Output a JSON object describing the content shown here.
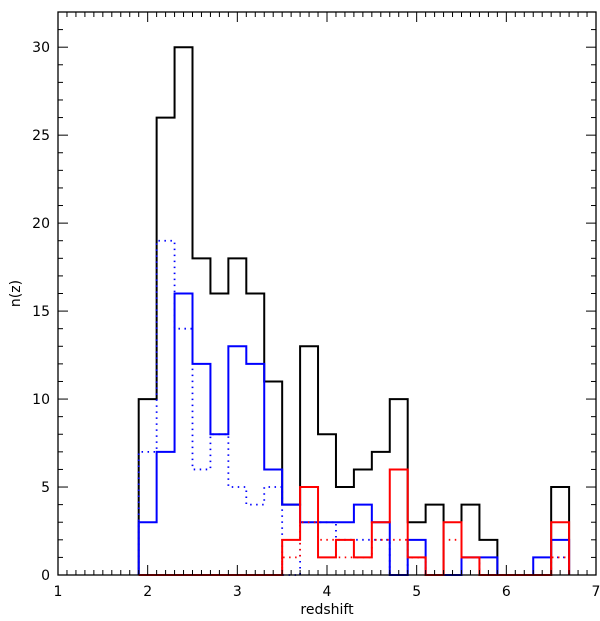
{
  "chart_data": {
    "type": "histogram-step",
    "title": "",
    "xlabel": "redshift",
    "ylabel": "n(z)",
    "xlim": [
      1,
      7
    ],
    "ylim": [
      0,
      32
    ],
    "x_ticks": [
      1,
      2,
      3,
      4,
      5,
      6,
      7
    ],
    "y_ticks": [
      0,
      5,
      10,
      15,
      20,
      25,
      30
    ],
    "x_minor_step": 0.1,
    "y_minor_step": 1,
    "grid": false,
    "legend": "none",
    "bins": {
      "start": 1.9,
      "width": 0.2,
      "count": 24
    },
    "series": [
      {
        "color": "#000000",
        "style": "solid",
        "values": [
          10,
          26,
          30,
          18,
          16,
          18,
          16,
          11,
          4,
          13,
          8,
          5,
          6,
          7,
          10,
          3,
          4,
          0,
          4,
          2,
          0,
          0,
          0,
          5
        ]
      },
      {
        "color": "#0000ff",
        "style": "solid",
        "values": [
          3,
          7,
          16,
          12,
          8,
          13,
          12,
          6,
          4,
          3,
          3,
          3,
          4,
          3,
          0,
          2,
          0,
          0,
          1,
          1,
          0,
          0,
          1,
          2
        ]
      },
      {
        "color": "#0000ff",
        "style": "dotted",
        "values": [
          7,
          19,
          14,
          6,
          8,
          5,
          4,
          5,
          0,
          3,
          3,
          2,
          2,
          2,
          0,
          1,
          0,
          0,
          1,
          0,
          0,
          0,
          0,
          1
        ]
      },
      {
        "color": "#ff0000",
        "style": "solid",
        "values": [
          0,
          0,
          0,
          0,
          0,
          0,
          0,
          0,
          2,
          5,
          1,
          2,
          1,
          3,
          6,
          1,
          0,
          3,
          1,
          0,
          0,
          0,
          0,
          3
        ]
      },
      {
        "color": "#ff0000",
        "style": "dotted",
        "values": [
          0,
          0,
          0,
          0,
          0,
          0,
          0,
          0,
          1,
          3,
          2,
          1,
          1,
          2,
          2,
          1,
          0,
          2,
          1,
          0,
          0,
          0,
          0,
          1
        ]
      }
    ]
  }
}
